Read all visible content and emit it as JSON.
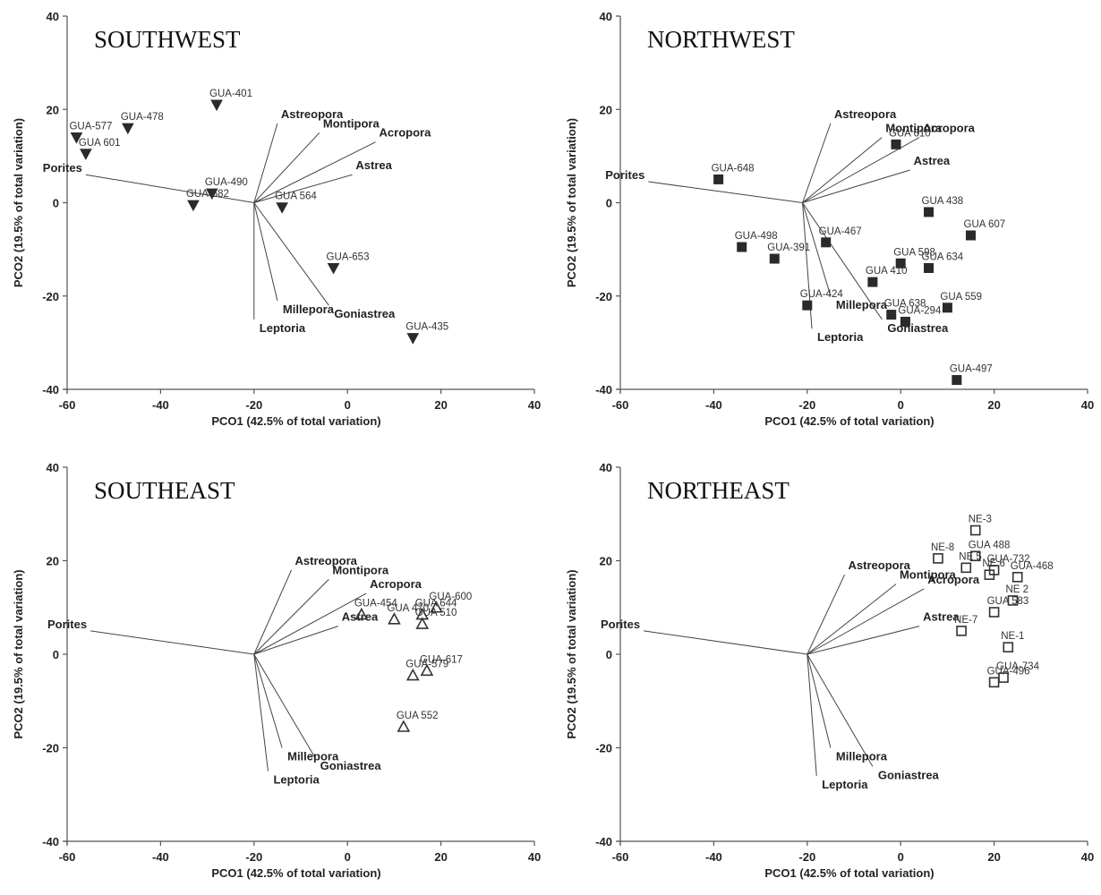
{
  "chart_data": [
    {
      "type": "scatter",
      "title": "SOUTHWEST",
      "xlabel": "PCO1 (42.5% of total variation)",
      "ylabel": "PCO2 (19.5% of total variation)",
      "xlim": [
        -60,
        40
      ],
      "ylim": [
        -40,
        40
      ],
      "xticks": [
        "-60",
        "-40",
        "-20",
        "0",
        "20",
        "40"
      ],
      "yticks": [
        "40",
        "20",
        "0",
        "-20",
        "-40"
      ],
      "marker": "triangle-down-filled",
      "origin": [
        -20,
        0
      ],
      "points": [
        {
          "label": "GUA-577",
          "x": -58,
          "y": 14
        },
        {
          "label": "GUA-478",
          "x": -47,
          "y": 16
        },
        {
          "label": "GUA 601",
          "x": -56,
          "y": 10.5
        },
        {
          "label": "GUA-401",
          "x": -28,
          "y": 21
        },
        {
          "label": "GUA-490",
          "x": -29,
          "y": 2
        },
        {
          "label": "GUA-582",
          "x": -33,
          "y": -0.5
        },
        {
          "label": "GUA 564",
          "x": -14,
          "y": -1
        },
        {
          "label": "GUA-653",
          "x": -3,
          "y": -14
        },
        {
          "label": "GUA-435",
          "x": 14,
          "y": -29
        }
      ],
      "vectors": [
        {
          "name": "Astreopora",
          "x": -15,
          "y": 17
        },
        {
          "name": "Montipora",
          "x": -6,
          "y": 15
        },
        {
          "name": "Acropora",
          "x": 6,
          "y": 13
        },
        {
          "name": "Astrea",
          "x": 1,
          "y": 6
        },
        {
          "name": "Porites",
          "x": -56,
          "y": 6
        },
        {
          "name": "Goniastrea",
          "x": -4,
          "y": -22
        },
        {
          "name": "Millepora",
          "x": -15,
          "y": -21
        },
        {
          "name": "Leptoria",
          "x": -20,
          "y": -25
        }
      ]
    },
    {
      "type": "scatter",
      "title": "NORTHWEST",
      "xlabel": "PCO1 (42.5% of total variation)",
      "ylabel": "PCO2 (19.5% of total variation)",
      "xlim": [
        -60,
        40
      ],
      "ylim": [
        -40,
        40
      ],
      "xticks": [
        "-60",
        "-40",
        "-20",
        "0",
        "20",
        "40"
      ],
      "yticks": [
        "40",
        "20",
        "0",
        "-20",
        "-40"
      ],
      "marker": "square-filled",
      "origin": [
        -21,
        0
      ],
      "points": [
        {
          "label": "GUA-648",
          "x": -39,
          "y": 5
        },
        {
          "label": "GUA 610",
          "x": -1,
          "y": 12.5
        },
        {
          "label": "GUA 438",
          "x": 6,
          "y": -2
        },
        {
          "label": "GUA 607",
          "x": 15,
          "y": -7
        },
        {
          "label": "GUA-498",
          "x": -34,
          "y": -9.5
        },
        {
          "label": "GUA-391",
          "x": -27,
          "y": -12
        },
        {
          "label": "GUA-467",
          "x": -16,
          "y": -8.5
        },
        {
          "label": "GUA 598",
          "x": 0,
          "y": -13
        },
        {
          "label": "GUA 634",
          "x": 6,
          "y": -14
        },
        {
          "label": "GUA 410",
          "x": -6,
          "y": -17
        },
        {
          "label": "GUA-424",
          "x": -20,
          "y": -22
        },
        {
          "label": "GUA 638",
          "x": -2,
          "y": -24
        },
        {
          "label": "GUA 559",
          "x": 10,
          "y": -22.5
        },
        {
          "label": "GUA-294",
          "x": 1,
          "y": -25.5
        },
        {
          "label": "GUA-497",
          "x": 12,
          "y": -38
        }
      ],
      "vectors": [
        {
          "name": "Astreopora",
          "x": -15,
          "y": 17
        },
        {
          "name": "Montipora",
          "x": -4,
          "y": 14
        },
        {
          "name": "Acropora",
          "x": 4,
          "y": 14
        },
        {
          "name": "Astrea",
          "x": 2,
          "y": 7
        },
        {
          "name": "Porites",
          "x": -54,
          "y": 4.5
        },
        {
          "name": "Goniastrea",
          "x": -4,
          "y": -25
        },
        {
          "name": "Millepora",
          "x": -15,
          "y": -20
        },
        {
          "name": "Leptoria",
          "x": -19,
          "y": -27
        }
      ]
    },
    {
      "type": "scatter",
      "title": "SOUTHEAST",
      "xlabel": "PCO1 (42.5% of total variation)",
      "ylabel": "PCO2 (19.5% of total variation)",
      "xlim": [
        -60,
        40
      ],
      "ylim": [
        -40,
        40
      ],
      "xticks": [
        "-60",
        "-40",
        "-20",
        "0",
        "20",
        "40"
      ],
      "yticks": [
        "40",
        "20",
        "0",
        "-20",
        "-40"
      ],
      "marker": "triangle-up-open",
      "origin": [
        -20,
        0
      ],
      "points": [
        {
          "label": "GUA-454",
          "x": 3,
          "y": 8.5
        },
        {
          "label": "GUA 470",
          "x": 10,
          "y": 7.5
        },
        {
          "label": "GUA-600",
          "x": 19,
          "y": 10
        },
        {
          "label": "GUA 644",
          "x": 16,
          "y": 8.5
        },
        {
          "label": "GUA 510",
          "x": 16,
          "y": 6.5
        },
        {
          "label": "GUA-617",
          "x": 17,
          "y": -3.5
        },
        {
          "label": "GUA-579",
          "x": 14,
          "y": -4.5
        },
        {
          "label": "GUA 552",
          "x": 12,
          "y": -15.5
        }
      ],
      "vectors": [
        {
          "name": "Astreopora",
          "x": -12,
          "y": 18
        },
        {
          "name": "Montipora",
          "x": -4,
          "y": 16
        },
        {
          "name": "Acropora",
          "x": 4,
          "y": 13
        },
        {
          "name": "Astrea",
          "x": -2,
          "y": 6
        },
        {
          "name": "Porites",
          "x": -55,
          "y": 5
        },
        {
          "name": "Goniastrea",
          "x": -7,
          "y": -22
        },
        {
          "name": "Millepora",
          "x": -14,
          "y": -20
        },
        {
          "name": "Leptoria",
          "x": -17,
          "y": -25
        }
      ]
    },
    {
      "type": "scatter",
      "title": "NORTHEAST",
      "xlabel": "PCO1 (42.5% of total variation)",
      "ylabel": "PCO2 (19.5% of total variation)",
      "xlim": [
        -60,
        40
      ],
      "ylim": [
        -40,
        40
      ],
      "xticks": [
        "-60",
        "-40",
        "-20",
        "0",
        "20",
        "40"
      ],
      "yticks": [
        "40",
        "20",
        "0",
        "-20",
        "-40"
      ],
      "marker": "square-open",
      "origin": [
        -20,
        0
      ],
      "points": [
        {
          "label": "NE-3",
          "x": 16,
          "y": 26.5
        },
        {
          "label": "NE-8",
          "x": 8,
          "y": 20.5
        },
        {
          "label": "GUA 488",
          "x": 16,
          "y": 21
        },
        {
          "label": "NE 5",
          "x": 14,
          "y": 18.5
        },
        {
          "label": "GUA-732",
          "x": 20,
          "y": 18
        },
        {
          "label": "NE 6",
          "x": 19,
          "y": 17
        },
        {
          "label": "GUA-468",
          "x": 25,
          "y": 16.5
        },
        {
          "label": "NE 2",
          "x": 24,
          "y": 11.5
        },
        {
          "label": "GUA 583",
          "x": 20,
          "y": 9
        },
        {
          "label": "NE-7",
          "x": 13,
          "y": 5
        },
        {
          "label": "NE-1",
          "x": 23,
          "y": 1.5
        },
        {
          "label": "GUA-734",
          "x": 22,
          "y": -5
        },
        {
          "label": "GUA-496",
          "x": 20,
          "y": -6
        }
      ],
      "vectors": [
        {
          "name": "Astreopora",
          "x": -12,
          "y": 17
        },
        {
          "name": "Montipora",
          "x": -1,
          "y": 15
        },
        {
          "name": "Acropora",
          "x": 5,
          "y": 14
        },
        {
          "name": "Astrea",
          "x": 4,
          "y": 6
        },
        {
          "name": "Porites",
          "x": -55,
          "y": 5
        },
        {
          "name": "Goniastrea",
          "x": -6,
          "y": -24
        },
        {
          "name": "Millepora",
          "x": -15,
          "y": -20
        },
        {
          "name": "Leptoria",
          "x": -18,
          "y": -26
        }
      ]
    }
  ]
}
